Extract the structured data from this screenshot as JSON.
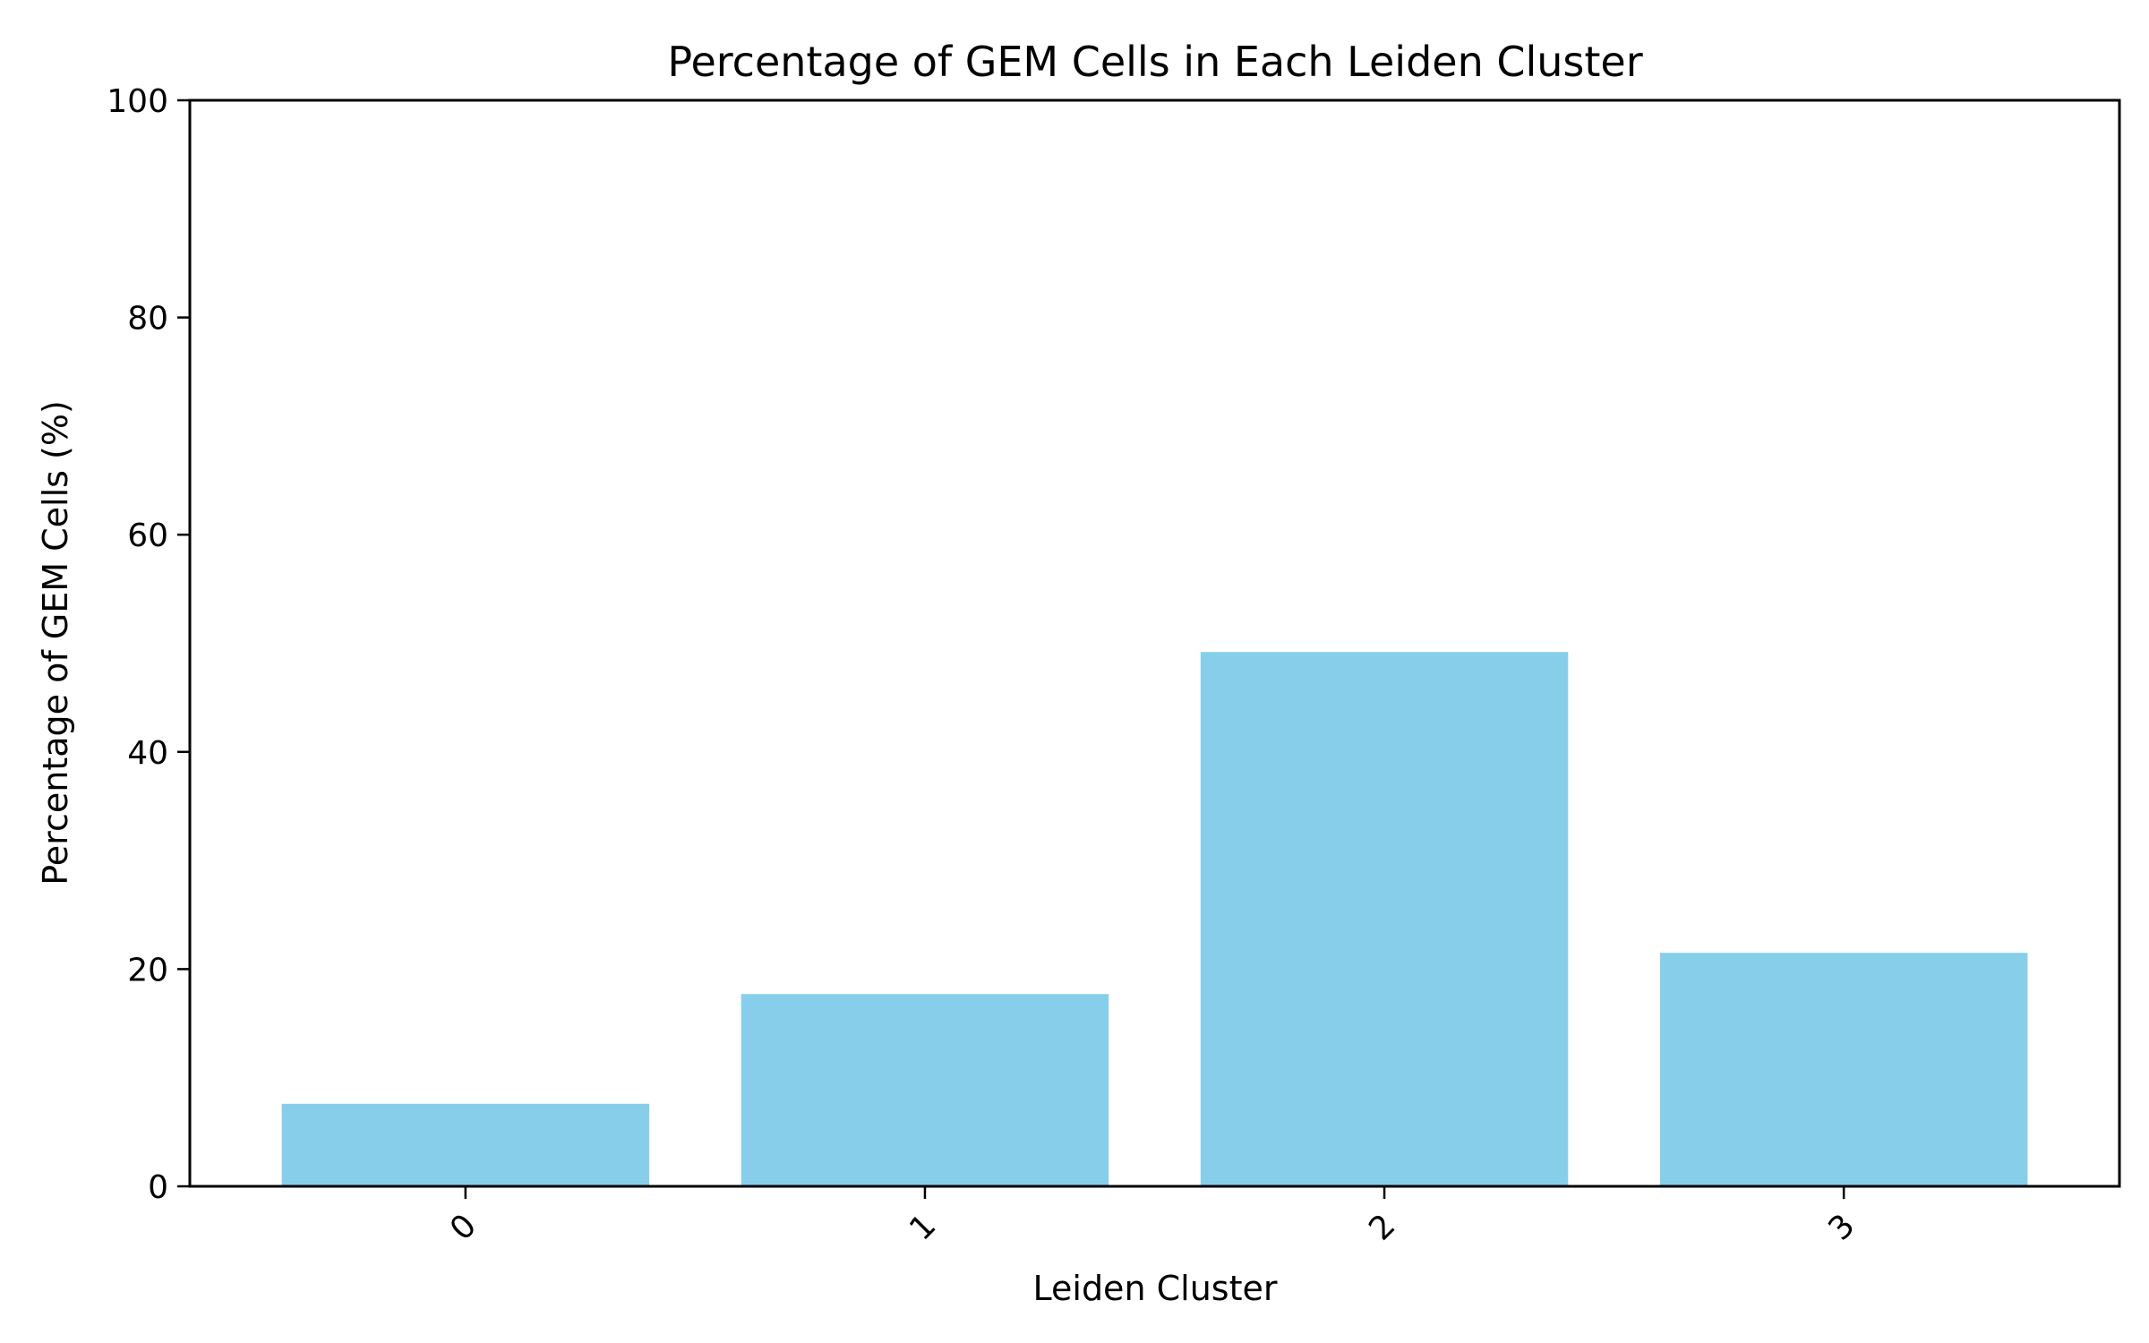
{
  "chart_data": {
    "type": "bar",
    "title": "Percentage of GEM Cells in Each Leiden Cluster",
    "xlabel": "Leiden Cluster",
    "ylabel": "Percentage of GEM Cells (%)",
    "categories": [
      "0",
      "1",
      "2",
      "3"
    ],
    "values": [
      7.6,
      17.7,
      49.2,
      21.5
    ],
    "ylim": [
      0,
      100
    ],
    "yticks": [
      "0",
      "20",
      "40",
      "60",
      "80",
      "100"
    ],
    "xtick_rotation_deg": 45,
    "bar_color": "#87CEEB",
    "grid": false,
    "legend": "none"
  }
}
